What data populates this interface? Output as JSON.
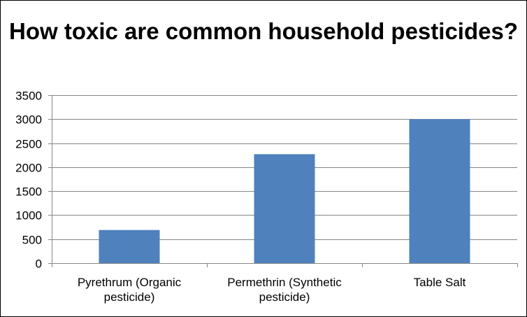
{
  "chart_data": {
    "type": "bar",
    "title": "How toxic are common household pesticides?",
    "categories": [
      "Pyrethrum (Organic pesticide)",
      "Permethrin (Synthetic pesticide)",
      "Table Salt"
    ],
    "category_lines": [
      [
        "Pyrethrum (Organic",
        "pesticide)"
      ],
      [
        "Permethrin (Synthetic",
        "pesticide)"
      ],
      [
        "Table Salt"
      ]
    ],
    "values": [
      690,
      2270,
      3000
    ],
    "ylim": [
      0,
      3500
    ],
    "yticks": [
      0,
      500,
      1000,
      1500,
      2000,
      2500,
      3000,
      3500
    ],
    "grid": true,
    "legend": "none",
    "bar_color": "#4f81bd",
    "xlabel": "",
    "ylabel": ""
  }
}
